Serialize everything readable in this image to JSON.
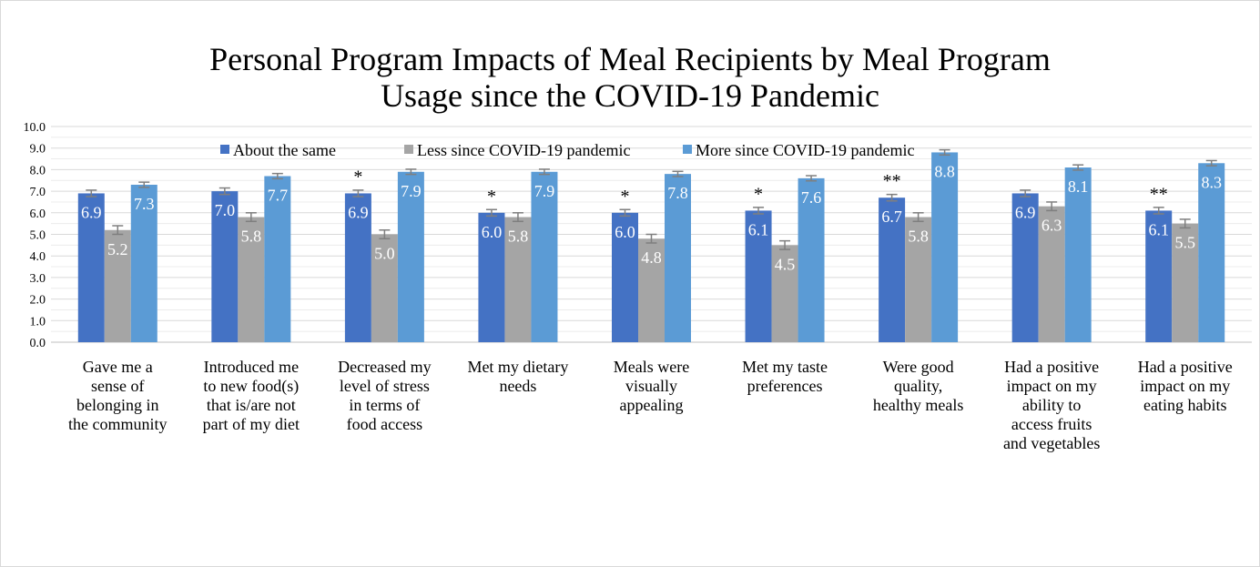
{
  "chart_data": {
    "type": "bar",
    "title": "Personal Program Impacts of Meal Recipients by Meal Program Usage since the COVID-19 Pandemic",
    "title_lines": [
      "Personal Program Impacts of Meal Recipients by Meal Program",
      "Usage since the COVID-19 Pandemic"
    ],
    "xlabel": "",
    "ylabel": "",
    "ylim": [
      0,
      10
    ],
    "yticks": [
      "0.0",
      "1.0",
      "2.0",
      "3.0",
      "4.0",
      "5.0",
      "6.0",
      "7.0",
      "8.0",
      "9.0",
      "10.0"
    ],
    "grid": true,
    "legend_position": "top",
    "categories": [
      [
        "Gave me a",
        "sense of",
        "belonging in",
        "the community"
      ],
      [
        "Introduced me",
        "to new food(s)",
        "that is/are not",
        "part of my diet"
      ],
      [
        "Decreased my",
        "level of stress",
        "in terms of",
        "food access"
      ],
      [
        "Met my dietary",
        "needs"
      ],
      [
        "Meals were",
        "visually",
        "appealing"
      ],
      [
        "Met my taste",
        "preferences"
      ],
      [
        "Were good",
        "quality,",
        "healthy meals"
      ],
      [
        "Had a positive",
        "impact on my",
        "ability to",
        "access fruits",
        "and vegetables"
      ],
      [
        "Had a positive",
        "impact on my",
        "eating habits"
      ]
    ],
    "series": [
      {
        "name": "About the same",
        "color": "#4472C4",
        "values": [
          6.9,
          7.0,
          6.9,
          6.0,
          6.0,
          6.1,
          6.7,
          6.9,
          6.1
        ],
        "labels": [
          "6.9",
          "7.0",
          "6.9",
          "6.0",
          "6.0",
          "6.1",
          "6.7",
          "6.9",
          "6.1"
        ],
        "error": [
          0.15,
          0.15,
          0.15,
          0.15,
          0.15,
          0.15,
          0.15,
          0.15,
          0.15
        ]
      },
      {
        "name": "Less since COVID-19 pandemic",
        "color": "#A5A5A5",
        "values": [
          5.2,
          5.8,
          5.0,
          5.8,
          4.8,
          4.5,
          5.8,
          6.3,
          5.5
        ],
        "labels": [
          "5.2",
          "5.8",
          "5.0",
          "5.8",
          "4.8",
          "4.5",
          "5.8",
          "6.3",
          "5.5"
        ],
        "error": [
          0.2,
          0.2,
          0.2,
          0.2,
          0.2,
          0.2,
          0.2,
          0.2,
          0.2
        ]
      },
      {
        "name": "More since COVID-19 pandemic",
        "color": "#5B9BD5",
        "values": [
          7.3,
          7.7,
          7.9,
          7.9,
          7.8,
          7.6,
          8.8,
          8.1,
          8.3
        ],
        "labels": [
          "7.3",
          "7.7",
          "7.9",
          "7.9",
          "7.8",
          "7.6",
          "8.8",
          "8.1",
          "8.3"
        ],
        "error": [
          0.12,
          0.12,
          0.12,
          0.12,
          0.12,
          0.12,
          0.12,
          0.12,
          0.12
        ]
      }
    ],
    "significance": [
      "",
      "",
      "*",
      "*",
      "*",
      "*",
      "**",
      "",
      "**"
    ]
  }
}
